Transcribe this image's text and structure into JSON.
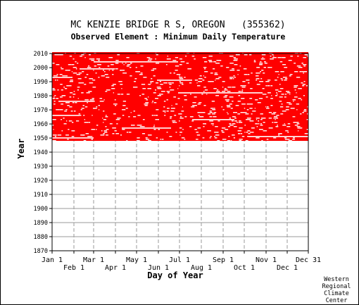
{
  "chart_data": {
    "type": "heatmap",
    "title": "MC KENZIE BRIDGE R S, OREGON   (355362)",
    "subtitle": "Observed Element : Minimum Daily Temperature",
    "xlabel": "Day of Year",
    "ylabel": "Year",
    "x_ticks_upper": [
      "Jan 1",
      "Mar 1",
      "May 1",
      "Jul 1",
      "Sep 1",
      "Nov 1",
      "Dec 31"
    ],
    "x_ticks_lower": [
      "Feb 1",
      "Apr 1",
      "Jun 1",
      "Aug 1",
      "Oct 1",
      "Dec 1"
    ],
    "x_tick_days": [
      1,
      32,
      60,
      91,
      121,
      152,
      182,
      213,
      244,
      274,
      305,
      335,
      365
    ],
    "y_ticks": [
      2010,
      2000,
      1990,
      1980,
      1970,
      1960,
      1950,
      1940,
      1930,
      1920,
      1910,
      1900,
      1890,
      1880,
      1870
    ],
    "ylim": [
      1870,
      2010
    ],
    "xlim": [
      1,
      365
    ],
    "grid": true,
    "data_color": "#ff0000",
    "data_period": [
      1948,
      2011
    ],
    "data_gap_rows": [
      {
        "year": 2004,
        "start_day": 60,
        "end_day": 180
      },
      {
        "year": 1999,
        "start_day": 40,
        "end_day": 90
      },
      {
        "year": 1993,
        "start_day": 1,
        "end_day": 30
      },
      {
        "year": 1991,
        "start_day": 150,
        "end_day": 200
      },
      {
        "year": 1982,
        "start_day": 180,
        "end_day": 300
      },
      {
        "year": 1976,
        "start_day": 10,
        "end_day": 60
      },
      {
        "year": 1966,
        "start_day": 1,
        "end_day": 40
      },
      {
        "year": 1963,
        "start_day": 200,
        "end_day": 260
      },
      {
        "year": 1957,
        "start_day": 100,
        "end_day": 170
      },
      {
        "year": 1951,
        "start_day": 280,
        "end_day": 365
      },
      {
        "year": 1950,
        "start_day": 1,
        "end_day": 60
      }
    ]
  },
  "credit": [
    "Western",
    "Regional",
    "Climate",
    "Center"
  ]
}
